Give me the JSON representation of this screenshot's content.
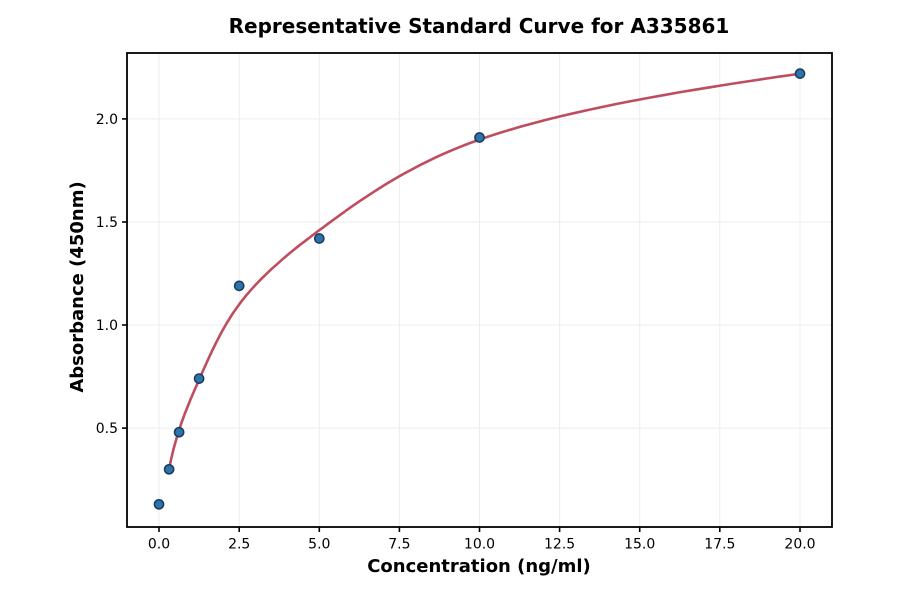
{
  "chart_data": {
    "type": "scatter",
    "title": "Representative Standard Curve for A335861",
    "xlabel": "Concentration (ng/ml)",
    "ylabel": "Absorbance (450nm)",
    "x": [
      0,
      0.313,
      0.625,
      1.25,
      2.5,
      5,
      10,
      20
    ],
    "y": [
      0.13,
      0.3,
      0.48,
      0.74,
      1.19,
      1.42,
      1.91,
      2.22
    ],
    "fit_curve": {
      "description": "4PL-style fitted standard curve drawn from lowest non-zero standard to highest standard",
      "samples": {
        "x": [
          0.313,
          0.625,
          1.25,
          2.5,
          5,
          10,
          20
        ],
        "y": [
          0.3,
          0.49,
          0.735,
          1.1,
          1.46,
          1.9,
          2.22
        ]
      }
    },
    "xlim": [
      -1,
      21
    ],
    "ylim": [
      0.02,
      2.32
    ],
    "x_ticks": {
      "values": [
        0,
        2.5,
        5,
        7.5,
        10,
        12.5,
        15,
        17.5,
        20
      ],
      "labels": [
        "0.0",
        "2.5",
        "5.0",
        "7.5",
        "10.0",
        "12.5",
        "15.0",
        "17.5",
        "20.0"
      ]
    },
    "y_ticks": {
      "values": [
        0.5,
        1.0,
        1.5,
        2.0
      ],
      "labels": [
        "0.5",
        "1.0",
        "1.5",
        "2.0"
      ]
    },
    "grid": true,
    "legend": "none",
    "colors": {
      "point_fill": "#2c74ac",
      "point_edge": "#1b3a5a",
      "curve": "#bf4d5f",
      "grid": "#ececec",
      "spine": "#000000",
      "text": "#000000",
      "background": "#ffffff"
    }
  }
}
